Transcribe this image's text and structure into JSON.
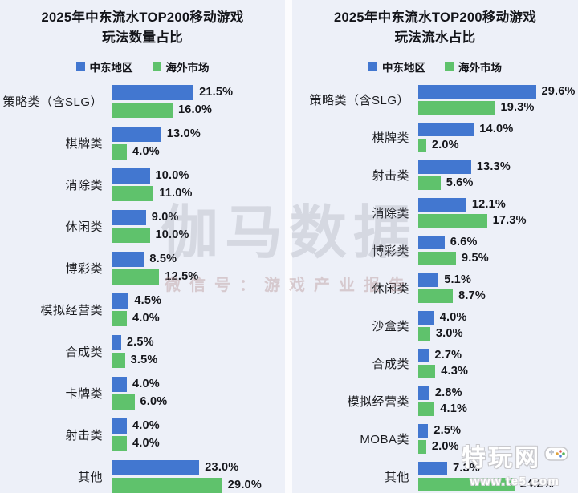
{
  "colors": {
    "middle_east_blue": "#4277d0",
    "overseas_green": "#5fc26c",
    "panel_bg": "#edf0f8"
  },
  "watermarks": {
    "center": {
      "line1": "伽马数据",
      "line2": "微信号：游戏产业报告"
    },
    "corner": {
      "site": "特玩网",
      "url": "www.te5.com"
    }
  },
  "chart_data": [
    {
      "type": "bar",
      "orientation": "horizontal",
      "title_line1": "2025年中东流水TOP200移动游戏",
      "title_line2": "玩法数量占比",
      "legend": [
        "中东地区",
        "海外市场"
      ],
      "value_suffix": "%",
      "xlim": [
        0,
        30
      ],
      "grid": false,
      "legend_position": "top-center",
      "categories": [
        "策略类（含SLG）",
        "棋牌类",
        "消除类",
        "休闲类",
        "博彩类",
        "模拟经营类",
        "合成类",
        "卡牌类",
        "射击类",
        "其他"
      ],
      "series": [
        {
          "name": "中东地区",
          "color": "#4277d0",
          "values": [
            21.5,
            13.0,
            10.0,
            9.0,
            8.5,
            4.5,
            2.5,
            4.0,
            4.0,
            23.0
          ]
        },
        {
          "name": "海外市场",
          "color": "#5fc26c",
          "values": [
            16.0,
            4.0,
            11.0,
            10.0,
            12.5,
            4.0,
            3.5,
            6.0,
            4.0,
            29.0
          ]
        }
      ]
    },
    {
      "type": "bar",
      "orientation": "horizontal",
      "title_line1": "2025年中东流水TOP200移动游戏",
      "title_line2": "玩法流水占比",
      "legend": [
        "中东地区",
        "海外市场"
      ],
      "value_suffix": "%",
      "xlim": [
        0,
        30
      ],
      "grid": false,
      "legend_position": "top-center",
      "categories": [
        "策略类（含SLG）",
        "棋牌类",
        "射击类",
        "消除类",
        "博彩类",
        "休闲类",
        "沙盒类",
        "合成类",
        "模拟经营类",
        "MOBA类",
        "其他"
      ],
      "series": [
        {
          "name": "中东地区",
          "color": "#4277d0",
          "values": [
            29.6,
            14.0,
            13.3,
            12.1,
            6.6,
            5.1,
            4.0,
            2.7,
            2.8,
            2.5,
            7.3
          ]
        },
        {
          "name": "海外市场",
          "color": "#5fc26c",
          "values": [
            19.3,
            2.0,
            5.6,
            17.3,
            9.5,
            8.7,
            3.0,
            4.3,
            4.1,
            2.0,
            24.2
          ]
        }
      ]
    }
  ]
}
